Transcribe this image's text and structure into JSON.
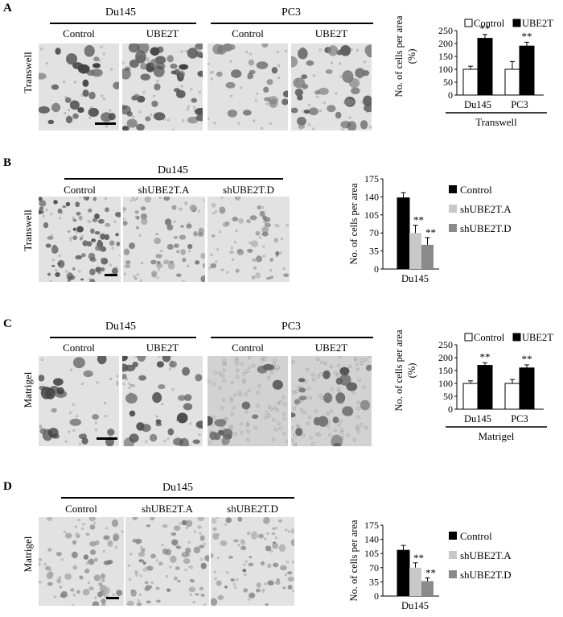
{
  "panels": [
    {
      "id": "A",
      "groups": [
        "Du145",
        "PC3"
      ],
      "columns": [
        "Control",
        "UBE2T",
        "Control",
        "UBE2T"
      ],
      "row_label": "Transwell"
    },
    {
      "id": "B",
      "groups": [
        "Du145"
      ],
      "columns": [
        "Control",
        "shUBE2T.A",
        "shUBE2T.D"
      ],
      "row_label": "Transwell"
    },
    {
      "id": "C",
      "groups": [
        "Du145",
        "PC3"
      ],
      "columns": [
        "Control",
        "UBE2T",
        "Control",
        "UBE2T"
      ],
      "row_label": "Matrigel"
    },
    {
      "id": "D",
      "groups": [
        "Du145"
      ],
      "columns": [
        "Control",
        "shUBE2T.A",
        "shUBE2T.D"
      ],
      "row_label": "Matrigel"
    }
  ],
  "chart_data": [
    {
      "panel": "A",
      "type": "bar",
      "ylabel": "No. of cells per area (%)",
      "xlabel": "Transwell",
      "categories": [
        "Du145",
        "PC3"
      ],
      "series": [
        {
          "name": "Control",
          "values": [
            100,
            100
          ],
          "errors": [
            12,
            30
          ],
          "color": "#ffffff"
        },
        {
          "name": "UBE2T",
          "values": [
            220,
            190
          ],
          "errors": [
            15,
            15
          ],
          "color": "#000000"
        }
      ],
      "significance": [
        [
          "",
          "**"
        ],
        [
          "",
          "**"
        ]
      ],
      "ylim": [
        0,
        250
      ],
      "yticks": [
        "0",
        "50",
        "100",
        "150",
        "200",
        "250"
      ]
    },
    {
      "panel": "B",
      "type": "bar",
      "ylabel": "No. of cells per area",
      "xlabel": "Du145",
      "categories": [
        "Du145"
      ],
      "series": [
        {
          "name": "Control",
          "values": [
            138
          ],
          "errors": [
            10
          ],
          "color": "#000000"
        },
        {
          "name": "shUBE2T.A",
          "values": [
            70
          ],
          "errors": [
            15
          ],
          "color": "#c8c8c8"
        },
        {
          "name": "shUBE2T.D",
          "values": [
            47
          ],
          "errors": [
            14
          ],
          "color": "#8a8a8a"
        }
      ],
      "significance": [
        "",
        "**",
        "**"
      ],
      "ylim": [
        0,
        175
      ],
      "yticks": [
        "0",
        "35",
        "70",
        "105",
        "140",
        "175"
      ]
    },
    {
      "panel": "C",
      "type": "bar",
      "ylabel": "No. of cells per area (%)",
      "xlabel": "Matrigel",
      "categories": [
        "Du145",
        "PC3"
      ],
      "series": [
        {
          "name": "Control",
          "values": [
            100,
            100
          ],
          "errors": [
            10,
            15
          ],
          "color": "#ffffff"
        },
        {
          "name": "UBE2T",
          "values": [
            170,
            160
          ],
          "errors": [
            10,
            12
          ],
          "color": "#000000"
        }
      ],
      "significance": [
        [
          "",
          "**"
        ],
        [
          "",
          "**"
        ]
      ],
      "ylim": [
        0,
        250
      ],
      "yticks": [
        "0",
        "50",
        "100",
        "150",
        "200",
        "250"
      ]
    },
    {
      "panel": "D",
      "type": "bar",
      "ylabel": "No. of cells per area",
      "xlabel": "Du145",
      "categories": [
        "Du145"
      ],
      "series": [
        {
          "name": "Control",
          "values": [
            113
          ],
          "errors": [
            12
          ],
          "color": "#000000"
        },
        {
          "name": "shUBE2T.A",
          "values": [
            70
          ],
          "errors": [
            12
          ],
          "color": "#c8c8c8"
        },
        {
          "name": "shUBE2T.D",
          "values": [
            37
          ],
          "errors": [
            8
          ],
          "color": "#8a8a8a"
        }
      ],
      "significance": [
        "",
        "**",
        "**"
      ],
      "ylim": [
        0,
        175
      ],
      "yticks": [
        "0",
        "35",
        "70",
        "105",
        "140",
        "175"
      ]
    }
  ]
}
